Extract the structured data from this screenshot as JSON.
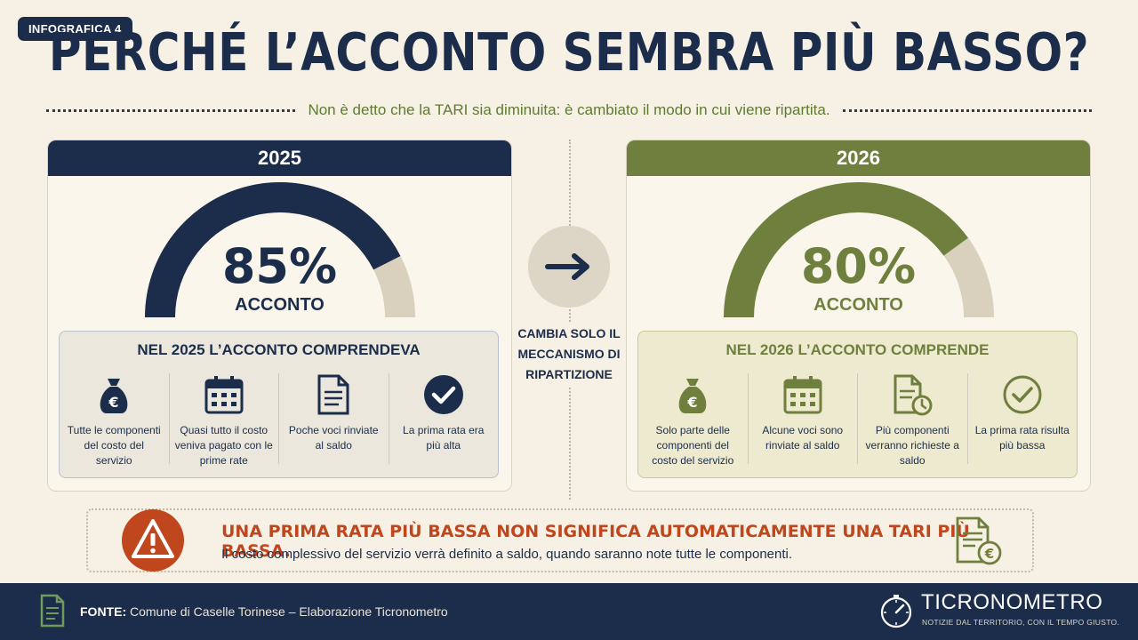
{
  "badge": "INFOGRAFICA 4",
  "title": "PERCHÉ L’ACCONTO SEMBRA PIÙ BASSO?",
  "subtitle": "Non è detto che la TARI sia diminuita: è cambiato il modo in cui viene ripartita.",
  "colors": {
    "navy": "#1b2d4a",
    "olive": "#6f7f3d",
    "beige": "#d9d0be",
    "warning": "#c0471d"
  },
  "left": {
    "year": "2025",
    "percent_value": 85,
    "percent": "85%",
    "label": "ACCONTO",
    "box_title": "NEL 2025 L’ACCONTO COMPRENDEVA",
    "items": [
      {
        "icon": "money-bag-icon",
        "text": "Tutte le componenti del costo del servizio"
      },
      {
        "icon": "calendar-icon",
        "text": "Quasi tutto il costo veniva pagato con le prime rate"
      },
      {
        "icon": "document-icon",
        "text": "Poche voci rinviate al saldo"
      },
      {
        "icon": "check-circle-icon",
        "text": "La prima rata era più alta"
      }
    ]
  },
  "middle": {
    "icon": "arrow-right-icon",
    "text": "CAMBIA SOLO IL MECCANISMO DI RIPARTIZIONE"
  },
  "right": {
    "year": "2026",
    "percent_value": 80,
    "percent": "80%",
    "label": "ACCONTO",
    "box_title": "NEL 2026 L’ACCONTO COMPRENDE",
    "items": [
      {
        "icon": "money-bag-icon",
        "text": "Solo parte delle componenti del costo del servizio"
      },
      {
        "icon": "calendar-icon",
        "text": "Alcune voci sono rinviate al saldo"
      },
      {
        "icon": "document-clock-icon",
        "text": "Più componenti verranno richieste a saldo"
      },
      {
        "icon": "check-circle-icon",
        "text": "La prima rata risulta più bassa"
      }
    ]
  },
  "warning": {
    "title": "UNA PRIMA RATA PIÙ BASSA NON SIGNIFICA AUTOMATICAMENTE UNA TARI PIÙ BASSA.",
    "text": "Il costo complessivo del servizio verrà definito a saldo, quando saranno note tutte le componenti."
  },
  "footer": {
    "source_label": "FONTE:",
    "source_text": "Comune di Caselle Torinese – Elaborazione Ticronometro",
    "brand": "TICRONOMETRO",
    "tagline": "NOTIZIE DAL TERRITORIO, CON IL TEMPO GIUSTO."
  }
}
